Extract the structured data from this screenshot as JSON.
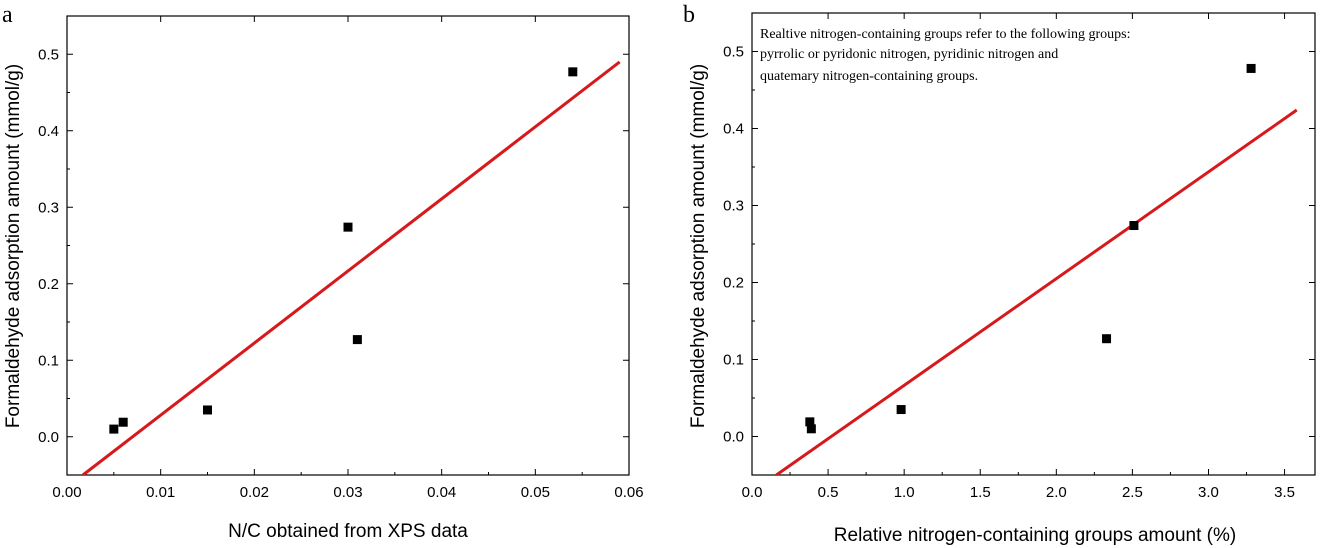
{
  "chart_data": [
    {
      "type": "scatter",
      "panel_label": "a",
      "xlabel": "N/C obtained from XPS data",
      "ylabel": "Formaldehyde adsorption amount (mmol/g)",
      "xlim": [
        0.0,
        0.06
      ],
      "ylim": [
        -0.05,
        0.55
      ],
      "xticks": [
        0.0,
        0.01,
        0.02,
        0.03,
        0.04,
        0.05,
        0.06
      ],
      "xtick_labels": [
        "0.00",
        "0.01",
        "0.02",
        "0.03",
        "0.04",
        "0.05",
        "0.06"
      ],
      "yticks": [
        0.0,
        0.1,
        0.2,
        0.3,
        0.4,
        0.5
      ],
      "ytick_labels": [
        "0.0",
        "0.1",
        "0.2",
        "0.3",
        "0.4",
        "0.5"
      ],
      "series": [
        {
          "points": [
            {
              "x": 0.005,
              "y": 0.01
            },
            {
              "x": 0.006,
              "y": 0.019
            },
            {
              "x": 0.015,
              "y": 0.035
            },
            {
              "x": 0.03,
              "y": 0.274
            },
            {
              "x": 0.031,
              "y": 0.127
            },
            {
              "x": 0.054,
              "y": 0.477
            }
          ]
        }
      ],
      "fit_line": {
        "x": [
          0.0017,
          0.059
        ],
        "y": [
          -0.05,
          0.49
        ],
        "color": "#d7191c"
      },
      "annotation": [],
      "grid": false
    },
    {
      "type": "scatter",
      "panel_label": "b",
      "xlabel": "Relative nitrogen-containing groups amount (%)",
      "ylabel": "Formaldehyde adsorption amount (mmol/g)",
      "xlim": [
        0.0,
        3.7
      ],
      "ylim": [
        -0.05,
        0.55
      ],
      "xticks": [
        0.0,
        0.5,
        1.0,
        1.5,
        2.0,
        2.5,
        3.0,
        3.5
      ],
      "xtick_labels": [
        "0.0",
        "0.5",
        "1.0",
        "1.5",
        "2.0",
        "2.5",
        "3.0",
        "3.5"
      ],
      "yticks": [
        0.0,
        0.1,
        0.2,
        0.3,
        0.4,
        0.5
      ],
      "ytick_labels": [
        "0.0",
        "0.1",
        "0.2",
        "0.3",
        "0.4",
        "0.5"
      ],
      "series": [
        {
          "points": [
            {
              "x": 0.38,
              "y": 0.019
            },
            {
              "x": 0.39,
              "y": 0.01
            },
            {
              "x": 0.98,
              "y": 0.035
            },
            {
              "x": 2.33,
              "y": 0.127
            },
            {
              "x": 2.51,
              "y": 0.274
            },
            {
              "x": 3.28,
              "y": 0.478
            }
          ]
        }
      ],
      "fit_line": {
        "x": [
          0.16,
          3.58
        ],
        "y": [
          -0.05,
          0.424
        ],
        "color": "#d7191c"
      },
      "annotation": [
        "Realtive nitrogen-containing groups refer to the following groups:",
        "pyrrolic or pyridonic nitrogen, pyridinic nitrogen and",
        "quatemary nitrogen-containing groups."
      ],
      "grid": false
    }
  ]
}
